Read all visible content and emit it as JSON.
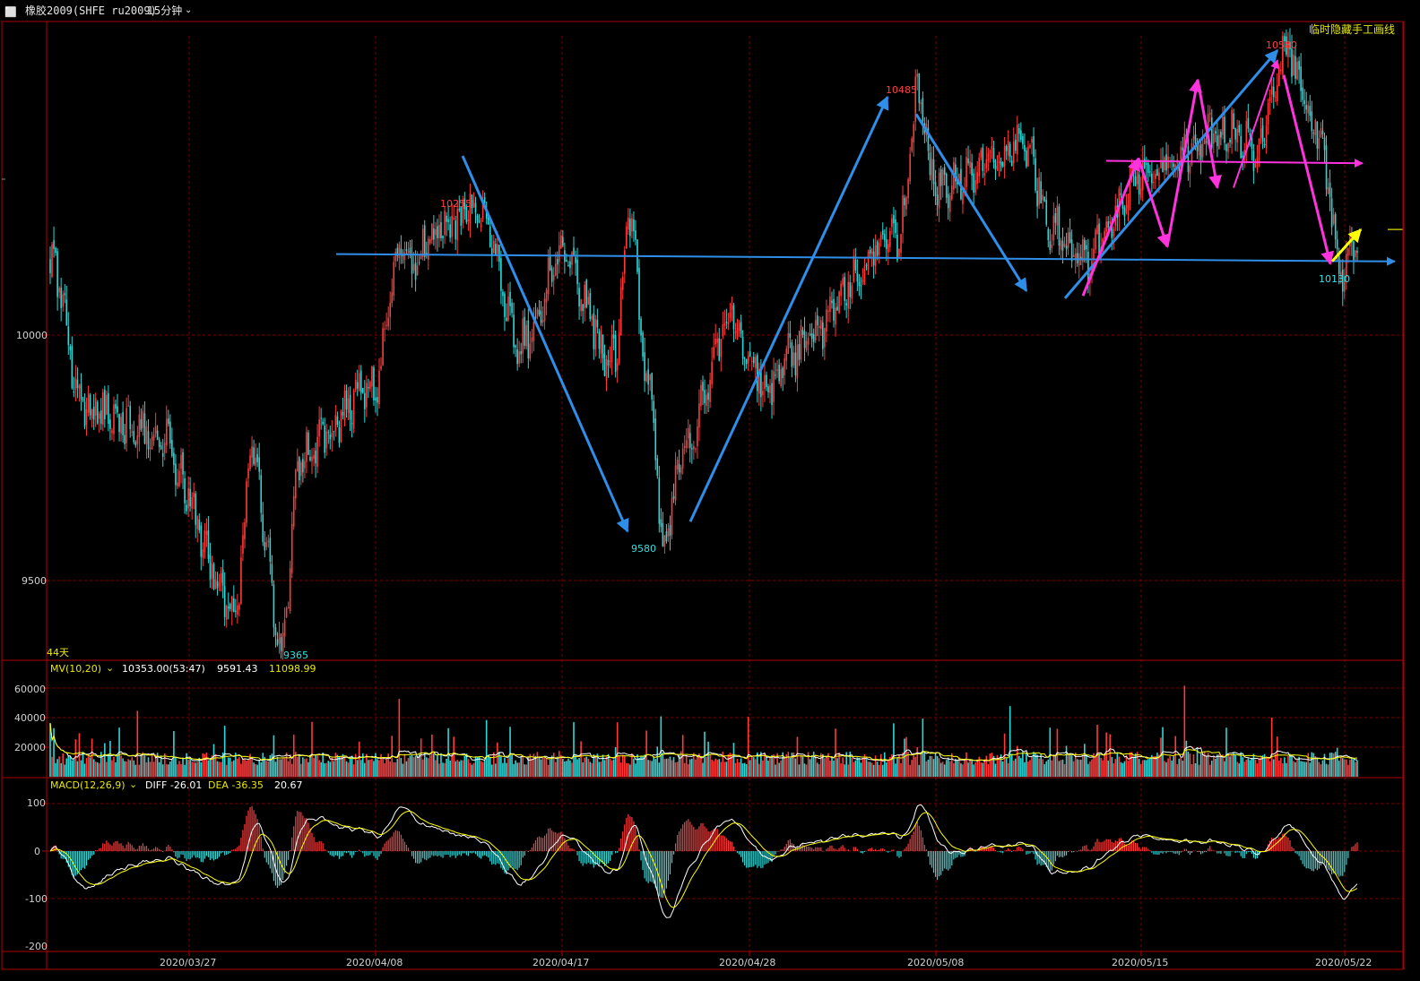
{
  "window": {
    "icon": "window-restore-icon",
    "title": "橡胶2009(SHFE ru2009)",
    "period": "15分钟",
    "period_dropdown_icon": "chevron-down-icon"
  },
  "toggle_label": "临时隐藏手工画线",
  "day_count": "44天",
  "price_panel": {
    "y_ticks": [
      "10000",
      "9500"
    ],
    "annotations": {
      "a_10255": "10255",
      "a_9365": "9365",
      "a_9580": "9580",
      "a_10485": "10485",
      "a_10580": "10580",
      "a_10130": "10130"
    }
  },
  "volume_panel": {
    "indicator": "MV(10,20)",
    "value_1": "10353.00(53:47)",
    "value_2": "9591.43",
    "value_3": "11098.99",
    "y_ticks": [
      "60000",
      "40000",
      "20000"
    ]
  },
  "macd_panel": {
    "indicator": "MACD(12,26,9)",
    "diff": "DIFF -26.01",
    "dea": "DEA -36.35",
    "macd": "20.67",
    "y_ticks": [
      "100",
      "0",
      "-100",
      "-200"
    ]
  },
  "x_axis": {
    "dates": [
      "2020/03/27",
      "2020/04/08",
      "2020/04/17",
      "2020/04/28",
      "2020/05/08",
      "2020/05/15",
      "2020/05/22"
    ]
  },
  "colors": {
    "up": "#ff3a3a",
    "down": "#2fd6d6",
    "grid": "#7a0000",
    "axis": "#b00000",
    "drawn_blue": "#2f8ee8",
    "drawn_magenta": "#ff33dd",
    "drawn_yellow": "#ffff00",
    "label_yellow": "#e8e800",
    "ma_white": "#ffffff",
    "ma_yellow": "#ffff00"
  },
  "chart_data": {
    "type": "candlestick",
    "instrument": "橡胶2009(SHFE ru2009)",
    "period": "15分钟",
    "x_dates": [
      "2020/03/27",
      "2020/04/08",
      "2020/04/17",
      "2020/04/28",
      "2020/05/08",
      "2020/05/15",
      "2020/05/22"
    ],
    "price_anchors": [
      {
        "x": "2020/03/23",
        "y": 10150
      },
      {
        "x": "2020/03/24",
        "y": 9850
      },
      {
        "x": "2020/03/26",
        "y": 9800
      },
      {
        "x": "2020/03/30",
        "y": 9450
      },
      {
        "x": "2020/03/31",
        "y": 9750
      },
      {
        "x": "2020/04/02",
        "y": 9365
      },
      {
        "x": "2020/04/03",
        "y": 9750
      },
      {
        "x": "2020/04/08",
        "y": 9900
      },
      {
        "x": "2020/04/09",
        "y": 10150
      },
      {
        "x": "2020/04/13",
        "y": 10255
      },
      {
        "x": "2020/04/15",
        "y": 9980
      },
      {
        "x": "2020/04/17",
        "y": 10150
      },
      {
        "x": "2020/04/20",
        "y": 9950
      },
      {
        "x": "2020/04/21",
        "y": 10230
      },
      {
        "x": "2020/04/22",
        "y": 9900
      },
      {
        "x": "2020/04/23",
        "y": 9580
      },
      {
        "x": "2020/04/24",
        "y": 9750
      },
      {
        "x": "2020/04/27",
        "y": 10050
      },
      {
        "x": "2020/04/28",
        "y": 9950
      },
      {
        "x": "2020/04/29",
        "y": 9880
      },
      {
        "x": "2020/04/30",
        "y": 9960
      },
      {
        "x": "2020/05/06",
        "y": 10200
      },
      {
        "x": "2020/05/07",
        "y": 10485
      },
      {
        "x": "2020/05/08",
        "y": 10300
      },
      {
        "x": "2020/05/11",
        "y": 10380
      },
      {
        "x": "2020/05/12",
        "y": 10220
      },
      {
        "x": "2020/05/13",
        "y": 10150
      },
      {
        "x": "2020/05/14",
        "y": 10240
      },
      {
        "x": "2020/05/15",
        "y": 10330
      },
      {
        "x": "2020/05/18",
        "y": 10420
      },
      {
        "x": "2020/05/19",
        "y": 10380
      },
      {
        "x": "2020/05/20",
        "y": 10580
      },
      {
        "x": "2020/05/21",
        "y": 10420
      },
      {
        "x": "2020/05/22",
        "y": 10130
      },
      {
        "x": "2020/05/25",
        "y": 10190
      }
    ],
    "price_y_ticks": [
      10000,
      9500
    ],
    "marked_prices": {
      "high_1": 10255,
      "low_1": 9365,
      "low_2": 9580,
      "high_2": 10485,
      "high_3": 10580,
      "low_3": 10130
    },
    "volume_y_ticks": [
      60000,
      40000,
      20000
    ],
    "mv": {
      "name": "MV(10,20)",
      "value": 10353.0,
      "ratio": "53:47",
      "mv10": 9591.43,
      "mv20": 11098.99
    },
    "macd": {
      "name": "MACD(12,26,9)",
      "diff": -26.01,
      "dea": -36.35,
      "macd": 20.67,
      "y_ticks": [
        100,
        0,
        -100,
        -200
      ]
    }
  }
}
